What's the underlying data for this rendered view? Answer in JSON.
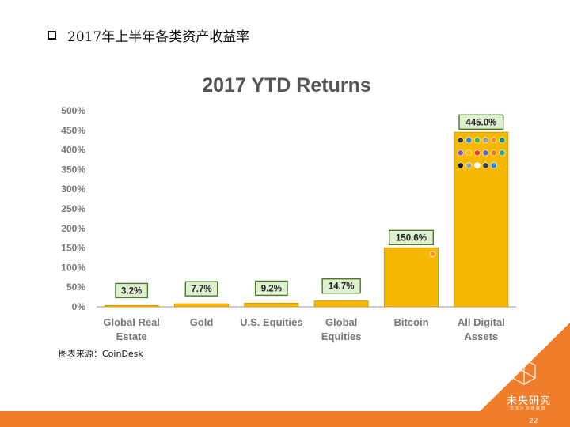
{
  "heading": "2017年上半年各类资产收益率",
  "source": "图表来源：CoinDesk",
  "brand": {
    "name": "未央研究",
    "tagline": "华 东 区 块 链 联 盟"
  },
  "page_number": "22",
  "colors": {
    "bar": "#f6b800",
    "bar_stroke": "#e09a00",
    "label_bg": "#dff0d0",
    "label_border": "#4a7a2a",
    "axis_text": "#777777",
    "title_text": "#555555",
    "accent": "#ef7d2a"
  },
  "chart_data": {
    "type": "bar",
    "title": "2017 YTD Returns",
    "categories": [
      [
        "Global Real",
        "Estate"
      ],
      [
        "Gold"
      ],
      [
        "U.S. Equities"
      ],
      [
        "Global",
        "Equities"
      ],
      [
        "Bitcoin"
      ],
      [
        "All Digital",
        "Assets"
      ]
    ],
    "values": [
      3.2,
      7.7,
      9.2,
      14.7,
      150.6,
      445.0
    ],
    "data_labels": [
      "3.2%",
      "7.7%",
      "9.2%",
      "14.7%",
      "150.6%",
      "445.0%"
    ],
    "yticks": [
      "0%",
      "50%",
      "100%",
      "150%",
      "200%",
      "250%",
      "300%",
      "350%",
      "400%",
      "450%",
      "500%"
    ],
    "ylim": [
      0,
      500
    ],
    "grid": false
  }
}
